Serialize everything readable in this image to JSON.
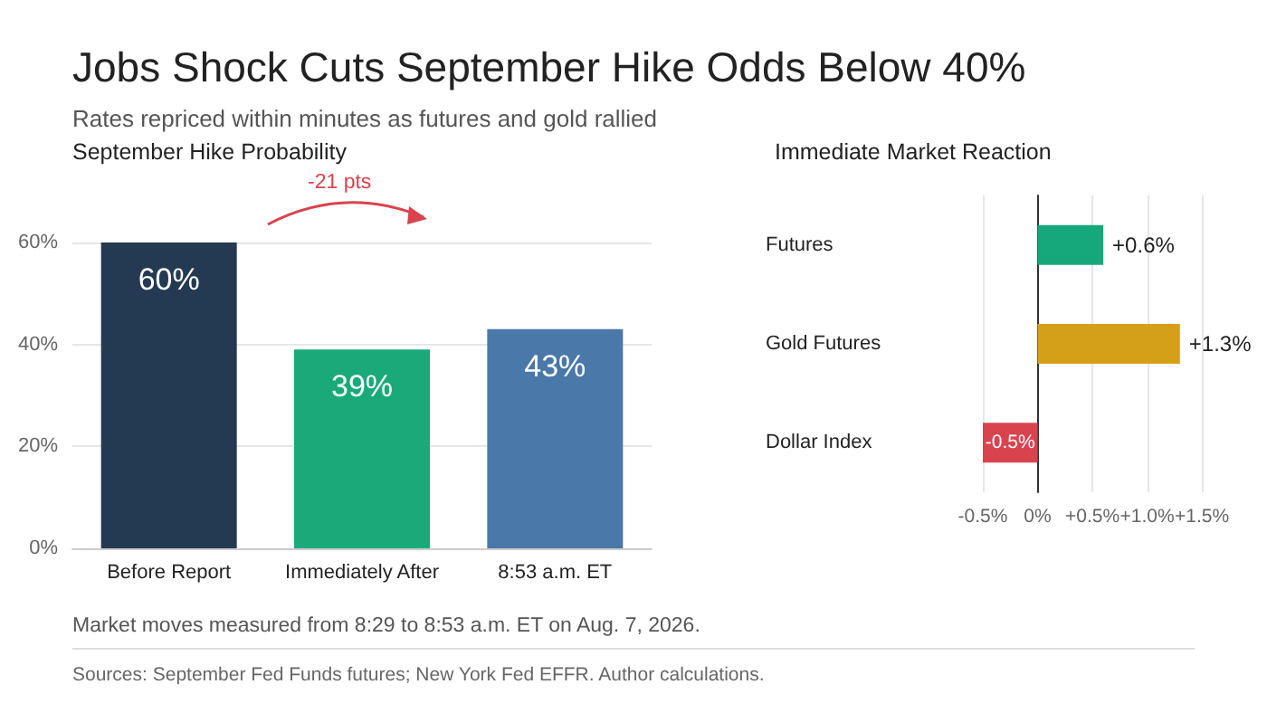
{
  "chart_data": [
    {
      "type": "other",
      "title": "Jobs Shock Cuts September Hike Odds Below 40%",
      "subtitle": "Rates repriced within minutes as futures and gold rallied",
      "annotations": [
        "Market moves measured from 8:29 to 8:53 a.m. ET on Aug. 7, 2026.",
        "Sources: September Fed Funds futures; New York Fed EFFR. Author calculations."
      ]
    },
    {
      "type": "bar",
      "title": "September Hike Probability",
      "categories": [
        "Before Report",
        "Immediately After",
        "8:53 a.m. ET"
      ],
      "values": [
        60,
        39,
        43
      ],
      "colors": [
        "#243a52",
        "#1aaa7a",
        "#4a78a8"
      ],
      "value_labels": [
        "60%",
        "39%",
        "43%"
      ],
      "ylim": [
        0,
        60
      ],
      "yticks": [
        {
          "value": 0,
          "label": "0%"
        },
        {
          "value": 20,
          "label": "20%"
        },
        {
          "value": 40,
          "label": "40%"
        },
        {
          "value": 60,
          "label": "60%"
        }
      ],
      "grid": "y",
      "annotations": [
        "-21 pts"
      ]
    },
    {
      "type": "bar",
      "orientation": "horizontal",
      "title": "Immediate Market Reaction",
      "categories": [
        "Futures",
        "Gold Futures",
        "Dollar Index"
      ],
      "values": [
        0.6,
        1.3,
        -0.5
      ],
      "colors": [
        "#16a87a",
        "#d4a017",
        "#d9434e"
      ],
      "value_labels": [
        "+0.6%",
        "+1.3%",
        "-0.5%"
      ],
      "xlim": [
        -0.5,
        1.5
      ],
      "xticks": [
        {
          "value": -0.5,
          "label": "-0.5%"
        },
        {
          "value": 0,
          "label": "0%"
        },
        {
          "value": 0.5,
          "label": "+0.5%"
        },
        {
          "value": 1,
          "label": "+1.0%"
        },
        {
          "value": 1.5,
          "label": "+1.5%"
        }
      ],
      "grid": "x"
    }
  ]
}
